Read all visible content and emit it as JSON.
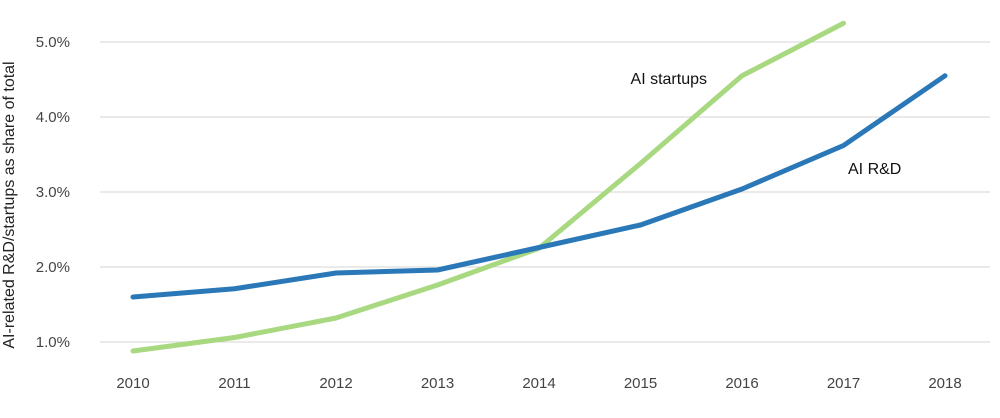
{
  "chart_data": {
    "type": "line",
    "title": "",
    "xlabel": "",
    "ylabel": "AI-related R&D/startups as share of total",
    "x": [
      "2010",
      "2011",
      "2012",
      "2013",
      "2014",
      "2015",
      "2016",
      "2017",
      "2018"
    ],
    "y_ticks": [
      "1.0%",
      "2.0%",
      "3.0%",
      "4.0%",
      "5.0%"
    ],
    "ylim": [
      0.65,
      5.35
    ],
    "grid": true,
    "legend": "inline",
    "series": [
      {
        "name": "AI R&D",
        "color": "#2a78b8",
        "values": [
          1.6,
          1.71,
          1.92,
          1.96,
          2.26,
          2.56,
          3.04,
          3.62,
          4.55
        ]
      },
      {
        "name": "AI startups",
        "color": "#a8d981",
        "values": [
          0.88,
          1.06,
          1.32,
          1.76,
          2.25,
          3.38,
          4.55,
          5.25,
          null
        ]
      }
    ]
  }
}
